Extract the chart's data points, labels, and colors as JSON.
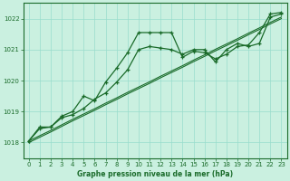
{
  "title": "Graphe pression niveau de la mer (hPa)",
  "background_color": "#caf0e0",
  "grid_color": "#99ddcc",
  "line_color": "#1a6b2a",
  "xlim": [
    -0.5,
    23.5
  ],
  "ylim": [
    1017.5,
    1022.5
  ],
  "yticks": [
    1018,
    1019,
    1020,
    1021,
    1022
  ],
  "xticks": [
    0,
    1,
    2,
    3,
    4,
    5,
    6,
    7,
    8,
    9,
    10,
    11,
    12,
    13,
    14,
    15,
    16,
    17,
    18,
    19,
    20,
    21,
    22,
    23
  ],
  "series": [
    {
      "x": [
        0,
        1,
        2,
        3,
        4,
        5,
        6,
        7,
        8,
        9,
        10,
        11,
        12,
        13,
        14,
        15,
        16,
        17,
        18,
        19,
        20,
        21,
        22,
        23
      ],
      "y": [
        1018.05,
        1018.5,
        1018.5,
        1018.85,
        1019.0,
        1019.5,
        1019.35,
        1019.95,
        1020.4,
        1020.9,
        1021.55,
        1021.55,
        1021.55,
        1021.55,
        1020.75,
        1020.95,
        1020.9,
        1020.7,
        1020.85,
        1021.1,
        1021.15,
        1021.55,
        1022.15,
        1022.2
      ]
    },
    {
      "x": [
        0,
        1,
        2,
        3,
        4,
        5,
        6,
        7,
        8,
        9,
        10,
        11,
        12,
        13,
        14,
        15,
        16,
        17,
        18,
        19,
        20,
        21,
        22,
        23
      ],
      "y": [
        1018.0,
        1018.17,
        1018.34,
        1018.52,
        1018.7,
        1018.87,
        1019.04,
        1019.22,
        1019.39,
        1019.57,
        1019.74,
        1019.91,
        1020.09,
        1020.26,
        1020.43,
        1020.61,
        1020.78,
        1020.96,
        1021.13,
        1021.3,
        1021.48,
        1021.65,
        1021.83,
        1022.0
      ]
    },
    {
      "x": [
        0,
        1,
        2,
        3,
        4,
        5,
        6,
        7,
        8,
        9,
        10,
        11,
        12,
        13,
        14,
        15,
        16,
        17,
        18,
        19,
        20,
        21,
        22,
        23
      ],
      "y": [
        1018.05,
        1018.22,
        1018.39,
        1018.57,
        1018.75,
        1018.92,
        1019.09,
        1019.27,
        1019.44,
        1019.62,
        1019.79,
        1019.96,
        1020.14,
        1020.31,
        1020.48,
        1020.66,
        1020.83,
        1021.01,
        1021.18,
        1021.35,
        1021.53,
        1021.7,
        1021.88,
        1022.05
      ]
    },
    {
      "x": [
        0,
        1,
        2,
        3,
        4,
        5,
        6,
        7,
        8,
        9,
        10,
        11,
        12,
        13,
        14,
        15,
        16,
        17,
        18,
        19,
        20,
        21,
        22,
        23
      ],
      "y": [
        1018.05,
        1018.45,
        1018.5,
        1018.8,
        1018.9,
        1019.1,
        1019.4,
        1019.6,
        1019.95,
        1020.35,
        1021.0,
        1021.1,
        1021.05,
        1021.0,
        1020.85,
        1021.0,
        1021.0,
        1020.6,
        1021.0,
        1021.2,
        1021.1,
        1021.2,
        1022.05,
        1022.15
      ]
    }
  ]
}
